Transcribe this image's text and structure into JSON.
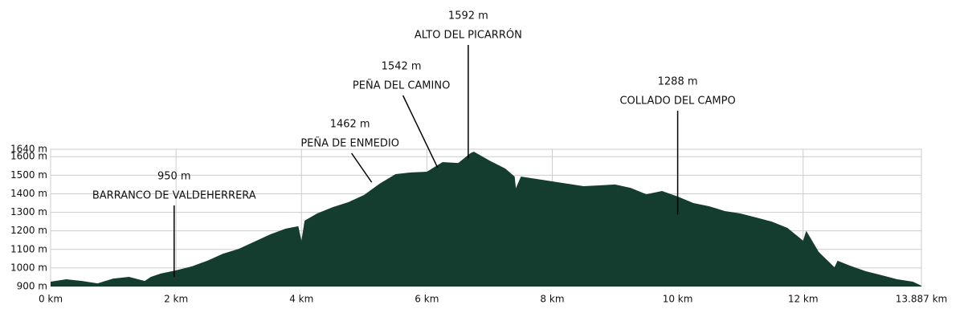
{
  "chart_data": {
    "type": "area",
    "x": [
      0,
      0.25,
      0.5,
      0.75,
      1.0,
      1.25,
      1.5,
      1.6,
      1.75,
      2.0,
      2.25,
      2.5,
      2.75,
      3.0,
      3.25,
      3.5,
      3.75,
      3.95,
      4.0,
      4.05,
      4.25,
      4.5,
      4.75,
      5.0,
      5.25,
      5.5,
      5.75,
      6.0,
      6.25,
      6.5,
      6.7,
      6.75,
      7.0,
      7.25,
      7.4,
      7.42,
      7.5,
      7.75,
      8.0,
      8.25,
      8.5,
      8.75,
      9.0,
      9.25,
      9.5,
      9.75,
      10.0,
      10.25,
      10.5,
      10.75,
      11.0,
      11.25,
      11.5,
      11.75,
      12.0,
      12.05,
      12.25,
      12.5,
      12.55,
      12.75,
      13.0,
      13.25,
      13.5,
      13.75,
      13.887
    ],
    "values": [
      926,
      939,
      930,
      917,
      943,
      952,
      930,
      952,
      969,
      987,
      1008,
      1039,
      1077,
      1103,
      1142,
      1181,
      1212,
      1225,
      1147,
      1255,
      1294,
      1328,
      1355,
      1394,
      1455,
      1506,
      1515,
      1519,
      1571,
      1566,
      1620,
      1627,
      1579,
      1536,
      1493,
      1430,
      1493,
      1480,
      1467,
      1454,
      1441,
      1445,
      1450,
      1432,
      1397,
      1415,
      1385,
      1350,
      1333,
      1307,
      1294,
      1272,
      1250,
      1216,
      1147,
      1200,
      1086,
      1004,
      1039,
      1012,
      982,
      961,
      939,
      926,
      904
    ],
    "color": "#143d30",
    "xlim": [
      0,
      13.887
    ],
    "xticks": [
      {
        "value": 0,
        "label": "0 km"
      },
      {
        "value": 2,
        "label": "2 km"
      },
      {
        "value": 4,
        "label": "4 km"
      },
      {
        "value": 6,
        "label": "6 km"
      },
      {
        "value": 8,
        "label": "8 km"
      },
      {
        "value": 10,
        "label": "10 km"
      },
      {
        "value": 12,
        "label": "12 km"
      },
      {
        "value": 13.887,
        "label": "13.887 km"
      }
    ],
    "ylim": [
      900,
      1640
    ],
    "yticks": [
      {
        "value": 900,
        "label": "900 m"
      },
      {
        "value": 1000,
        "label": "1000 m"
      },
      {
        "value": 1100,
        "label": "1100 m"
      },
      {
        "value": 1200,
        "label": "1200 m"
      },
      {
        "value": 1300,
        "label": "1300 m"
      },
      {
        "value": 1400,
        "label": "1400 m"
      },
      {
        "value": 1500,
        "label": "1500 m"
      },
      {
        "value": 1600,
        "label": "1600 m"
      },
      {
        "value": 1640,
        "label": "1640 m"
      }
    ],
    "grid": true,
    "annotations": [
      {
        "x": 1.97,
        "value": 950,
        "value_label": "950 m",
        "text": "BARRANCO DE VALDEHERRERA"
      },
      {
        "x": 5.12,
        "value": 1462,
        "value_label": "1462 m",
        "text": "PEÑA DE ENMEDIO"
      },
      {
        "x": 6.17,
        "value": 1542,
        "value_label": "1542 m",
        "text": "PEÑA DEL CAMINO"
      },
      {
        "x": 6.66,
        "value": 1592,
        "value_label": "1592 m",
        "text": "ALTO DEL PICARRÓN"
      },
      {
        "x": 10.0,
        "value": 1288,
        "value_label": "1288 m",
        "text": "COLLADO DEL CAMPO"
      }
    ]
  }
}
